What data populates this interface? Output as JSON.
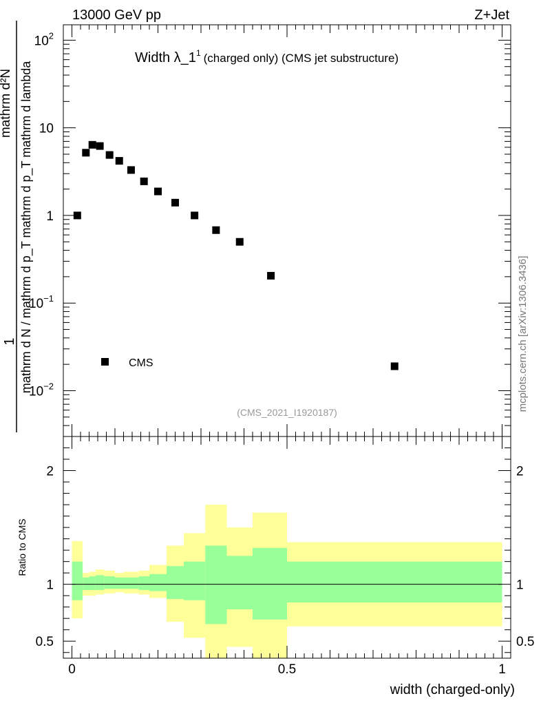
{
  "header": {
    "left_label": "13000 GeV pp",
    "right_label": "Z+Jet"
  },
  "side_label": "mcplots.cern.ch [arXiv:1306.3436]",
  "colors": {
    "band_outer": "#ffff99",
    "band_inner": "#99ff99",
    "marker": "#000000",
    "analysis_text": "#999999"
  },
  "chart_data": [
    {
      "type": "scatter",
      "title_main": "Width λ_1",
      "title_sup": "1",
      "title_rest": "(charged only) (CMS jet substructure)",
      "analysis_id": "(CMS_2021_I1920187)",
      "ylabel_numerator": "mathrm d²N",
      "ylabel_denominator": "mathrm d N / mathrm d p_T mathrm d p_T mathrm d lambda",
      "ylabel_numerator_prefix": "1",
      "yscale": "log",
      "ylim": [
        0.003,
        150
      ],
      "xlim": [
        -0.02,
        1.02
      ],
      "yticks": [
        {
          "value": 0.01,
          "base": "10",
          "exp": "−2"
        },
        {
          "value": 0.1,
          "base": "10",
          "exp": "−1"
        },
        {
          "value": 1,
          "base": "1",
          "exp": ""
        },
        {
          "value": 10,
          "base": "10",
          "exp": ""
        },
        {
          "value": 100,
          "base": "10",
          "exp": "2"
        }
      ],
      "legend": {
        "label": "CMS",
        "position": "bottom-left"
      },
      "series": [
        {
          "name": "CMS",
          "x": [
            0.0125,
            0.0325,
            0.0475,
            0.065,
            0.0875,
            0.11,
            0.1375,
            0.1675,
            0.2,
            0.24,
            0.285,
            0.335,
            0.39,
            0.4625,
            0.75
          ],
          "y": [
            1.0,
            5.2,
            6.4,
            6.2,
            4.9,
            4.2,
            3.3,
            2.45,
            1.88,
            1.4,
            1.0,
            0.68,
            0.5,
            0.205,
            0.019
          ]
        }
      ]
    },
    {
      "type": "area",
      "ylabel": "Ratio to CMS",
      "xlabel": "width (charged-only)",
      "ylim": [
        0.35,
        2.3
      ],
      "xlim": [
        -0.02,
        1.02
      ],
      "yticks": [
        {
          "value": 0.5,
          "label": "0.5"
        },
        {
          "value": 1,
          "label": "1"
        },
        {
          "value": 2,
          "label": "2"
        }
      ],
      "xticks": [
        {
          "value": 0,
          "label": "0"
        },
        {
          "value": 0.5,
          "label": "0.5"
        },
        {
          "value": 1,
          "label": "1"
        }
      ],
      "bins": [
        {
          "lo": 0.0,
          "hi": 0.025,
          "in_lo": 0.86,
          "in_hi": 1.2,
          "out_lo": 0.7,
          "out_hi": 1.38
        },
        {
          "lo": 0.025,
          "hi": 0.04,
          "in_lo": 0.95,
          "in_hi": 1.06,
          "out_lo": 0.9,
          "out_hi": 1.1
        },
        {
          "lo": 0.04,
          "hi": 0.055,
          "in_lo": 0.95,
          "in_hi": 1.07,
          "out_lo": 0.9,
          "out_hi": 1.11
        },
        {
          "lo": 0.055,
          "hi": 0.075,
          "in_lo": 0.95,
          "in_hi": 1.08,
          "out_lo": 0.91,
          "out_hi": 1.13
        },
        {
          "lo": 0.075,
          "hi": 0.1,
          "in_lo": 0.96,
          "in_hi": 1.07,
          "out_lo": 0.92,
          "out_hi": 1.12
        },
        {
          "lo": 0.1,
          "hi": 0.12,
          "in_lo": 0.96,
          "in_hi": 1.06,
          "out_lo": 0.93,
          "out_hi": 1.1
        },
        {
          "lo": 0.12,
          "hi": 0.155,
          "in_lo": 0.96,
          "in_hi": 1.06,
          "out_lo": 0.92,
          "out_hi": 1.11
        },
        {
          "lo": 0.155,
          "hi": 0.18,
          "in_lo": 0.95,
          "in_hi": 1.07,
          "out_lo": 0.91,
          "out_hi": 1.12
        },
        {
          "lo": 0.18,
          "hi": 0.22,
          "in_lo": 0.94,
          "in_hi": 1.09,
          "out_lo": 0.88,
          "out_hi": 1.17
        },
        {
          "lo": 0.22,
          "hi": 0.26,
          "in_lo": 0.87,
          "in_hi": 1.16,
          "out_lo": 0.67,
          "out_hi": 1.34
        },
        {
          "lo": 0.26,
          "hi": 0.31,
          "in_lo": 0.86,
          "in_hi": 1.2,
          "out_lo": 0.53,
          "out_hi": 1.45
        },
        {
          "lo": 0.31,
          "hi": 0.36,
          "in_lo": 0.65,
          "in_hi": 1.34,
          "out_lo": 0.35,
          "out_hi": 1.7
        },
        {
          "lo": 0.36,
          "hi": 0.42,
          "in_lo": 0.78,
          "in_hi": 1.25,
          "out_lo": 0.45,
          "out_hi": 1.5
        },
        {
          "lo": 0.42,
          "hi": 0.5,
          "in_lo": 0.69,
          "in_hi": 1.32,
          "out_lo": 0.35,
          "out_hi": 1.63
        },
        {
          "lo": 0.5,
          "hi": 1.0,
          "in_lo": 0.84,
          "in_hi": 1.2,
          "out_lo": 0.63,
          "out_hi": 1.37
        }
      ],
      "reference_line": 1
    }
  ]
}
